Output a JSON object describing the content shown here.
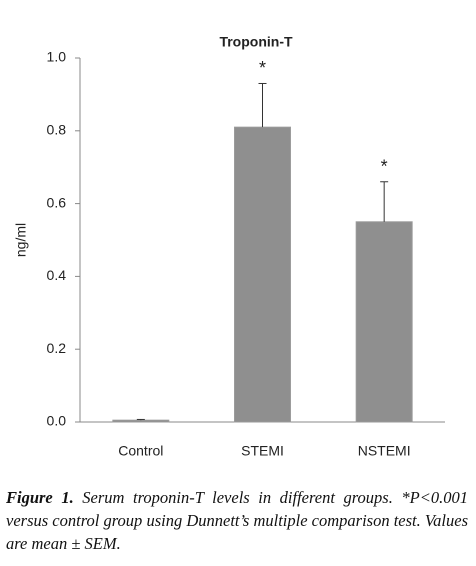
{
  "chart_data": {
    "type": "bar",
    "title": "Troponin-T",
    "ylabel": "ng/ml",
    "categories": [
      "Control",
      "STEMI",
      "NSTEMI"
    ],
    "values": [
      0.005,
      0.81,
      0.55
    ],
    "errors": [
      0.002,
      0.12,
      0.11
    ],
    "significance": [
      null,
      "*",
      "*"
    ],
    "color": "#8f8f8f",
    "ylim": [
      0,
      1
    ],
    "yticks": [
      {
        "value": 0,
        "label": "0.0"
      },
      {
        "value": 0.2,
        "label": "0.2"
      },
      {
        "value": 0.4,
        "label": "0.4"
      },
      {
        "value": 0.6,
        "label": "0.6"
      },
      {
        "value": 0.8,
        "label": "0.8"
      },
      {
        "value": 1,
        "label": "1.0"
      }
    ]
  },
  "caption": {
    "label": "Figure 1.",
    "text": "Serum troponin-T levels in different groups. *P<0.001 versus control group using Dunnett’s multiple comparison test. Values are mean ± SEM."
  }
}
